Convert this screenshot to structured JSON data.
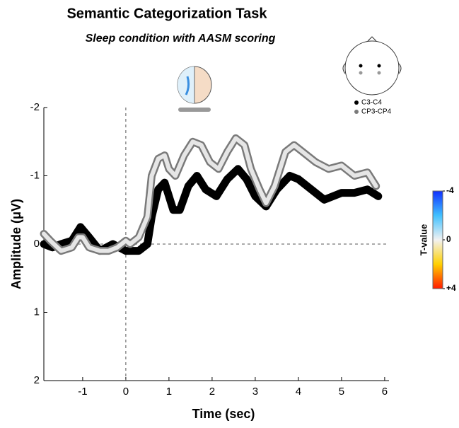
{
  "chart_data": {
    "type": "line",
    "title": "Semantic Categorization Task",
    "subtitle": "Sleep condition with AASM scoring",
    "x_label": "Time (sec)",
    "y_label": "Amplitude (μV)",
    "xlim": [
      -1.9,
      6.1
    ],
    "xticks": [
      -1,
      0,
      1,
      2,
      3,
      4,
      5,
      6
    ],
    "ylim": [
      -2,
      2
    ],
    "yticks": [
      -2,
      -1,
      0,
      1,
      2
    ],
    "y_inverted": true,
    "reference_lines": {
      "x": 0,
      "y": 0
    },
    "series": [
      {
        "name": "C3-C4",
        "color": "#000000",
        "edge_color": "#000000",
        "x": [
          -1.9,
          -1.7,
          -1.5,
          -1.25,
          -1.05,
          -0.85,
          -0.6,
          -0.3,
          0,
          0.3,
          0.5,
          0.6,
          0.75,
          0.9,
          1.1,
          1.25,
          1.45,
          1.65,
          1.85,
          2.1,
          2.35,
          2.6,
          2.8,
          3.0,
          3.25,
          3.5,
          3.8,
          4.0,
          4.3,
          4.6,
          5.0,
          5.3,
          5.6,
          5.85
        ],
        "values": [
          0.0,
          0.05,
          0.0,
          -0.05,
          -0.25,
          -0.1,
          0.1,
          0.0,
          0.1,
          0.1,
          0.0,
          -0.4,
          -0.8,
          -0.9,
          -0.5,
          -0.5,
          -0.85,
          -1.0,
          -0.8,
          -0.7,
          -0.95,
          -1.1,
          -0.95,
          -0.7,
          -0.55,
          -0.8,
          -1.0,
          -0.95,
          -0.8,
          -0.65,
          -0.75,
          -0.75,
          -0.8,
          -0.7
        ]
      },
      {
        "name": "CP3-CP4",
        "color": "#e6e6e6",
        "edge_color": "#7a7a7a",
        "x": [
          -1.9,
          -1.75,
          -1.5,
          -1.25,
          -1.1,
          -1.0,
          -0.85,
          -0.6,
          -0.4,
          -0.2,
          0,
          0.1,
          0.3,
          0.5,
          0.6,
          0.75,
          0.9,
          1.0,
          1.15,
          1.35,
          1.55,
          1.75,
          1.95,
          2.15,
          2.35,
          2.55,
          2.75,
          2.9,
          3.1,
          3.25,
          3.45,
          3.7,
          3.9,
          4.1,
          4.4,
          4.7,
          5.0,
          5.3,
          5.6,
          5.8
        ],
        "values": [
          -0.15,
          -0.05,
          0.1,
          0.05,
          -0.1,
          -0.1,
          0.05,
          0.1,
          0.1,
          0.05,
          -0.05,
          0,
          -0.1,
          -0.4,
          -1.0,
          -1.25,
          -1.3,
          -1.1,
          -1.0,
          -1.3,
          -1.5,
          -1.45,
          -1.2,
          -1.1,
          -1.35,
          -1.55,
          -1.45,
          -1.1,
          -0.8,
          -0.6,
          -0.85,
          -1.35,
          -1.45,
          -1.35,
          -1.2,
          -1.1,
          -1.15,
          -1.0,
          -1.05,
          -0.85
        ]
      }
    ],
    "colorbar": {
      "label": "T-value",
      "clim": [
        -4,
        4
      ],
      "ticks": [
        -4,
        0,
        {
          "value": 4,
          "label": "+4"
        }
      ],
      "colors": [
        "#1030ff",
        "#40c0ff",
        "#f2f2f2",
        "#ffd000",
        "#ff1a00"
      ]
    }
  }
}
